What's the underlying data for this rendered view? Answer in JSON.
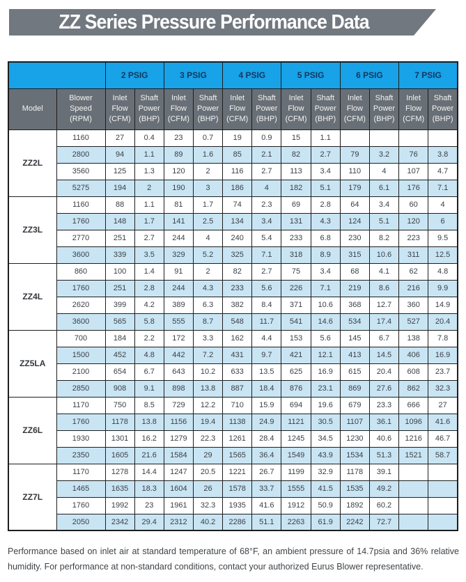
{
  "title": "ZZ Series Pressure Performance Data",
  "footnote": "Performance based on inlet air at standard temperature of 68°F, an ambient pressure of 14.7psia and 36% relative humidity. For performance at non-standard conditions, contact your authorized Eurus Blower representative.",
  "colors": {
    "banner_gray": "#71787f",
    "header_blue": "#18a2e8",
    "header_blue_text": "#11395e",
    "header_gray": "#696f76",
    "row_alt_blue": "#c9e5f4",
    "border": "#1d1d1d"
  },
  "table": {
    "psig_headers": [
      "2 PSIG",
      "3 PSIG",
      "4 PSIG",
      "5 PSIG",
      "6 PSIG",
      "7 PSIG"
    ],
    "model_header": "Model",
    "speed_header": "Blower\nSpeed\n(RPM)",
    "inlet_header": "Inlet\nFlow\n(CFM)",
    "shaft_header": "Shaft\nPower\n(BHP)",
    "groups": [
      {
        "model": "ZZ2L",
        "rows": [
          {
            "rpm": "1160",
            "values": [
              "27",
              "0.4",
              "23",
              "0.7",
              "19",
              "0.9",
              "15",
              "1.1",
              "",
              "",
              "",
              ""
            ]
          },
          {
            "rpm": "2800",
            "values": [
              "94",
              "1.1",
              "89",
              "1.6",
              "85",
              "2.1",
              "82",
              "2.7",
              "79",
              "3.2",
              "76",
              "3.8"
            ]
          },
          {
            "rpm": "3560",
            "values": [
              "125",
              "1.3",
              "120",
              "2",
              "116",
              "2.7",
              "113",
              "3.4",
              "110",
              "4",
              "107",
              "4.7"
            ]
          },
          {
            "rpm": "5275",
            "values": [
              "194",
              "2",
              "190",
              "3",
              "186",
              "4",
              "182",
              "5.1",
              "179",
              "6.1",
              "176",
              "7.1"
            ]
          }
        ]
      },
      {
        "model": "ZZ3L",
        "rows": [
          {
            "rpm": "1160",
            "values": [
              "88",
              "1.1",
              "81",
              "1.7",
              "74",
              "2.3",
              "69",
              "2.8",
              "64",
              "3.4",
              "60",
              "4"
            ]
          },
          {
            "rpm": "1760",
            "values": [
              "148",
              "1.7",
              "141",
              "2.5",
              "134",
              "3.4",
              "131",
              "4.3",
              "124",
              "5.1",
              "120",
              "6"
            ]
          },
          {
            "rpm": "2770",
            "values": [
              "251",
              "2.7",
              "244",
              "4",
              "240",
              "5.4",
              "233",
              "6.8",
              "230",
              "8.2",
              "223",
              "9.5"
            ]
          },
          {
            "rpm": "3600",
            "values": [
              "339",
              "3.5",
              "329",
              "5.2",
              "325",
              "7.1",
              "318",
              "8.9",
              "315",
              "10.6",
              "311",
              "12.5"
            ]
          }
        ]
      },
      {
        "model": "ZZ4L",
        "rows": [
          {
            "rpm": "860",
            "values": [
              "100",
              "1.4",
              "91",
              "2",
              "82",
              "2.7",
              "75",
              "3.4",
              "68",
              "4.1",
              "62",
              "4.8"
            ]
          },
          {
            "rpm": "1760",
            "values": [
              "251",
              "2.8",
              "244",
              "4.3",
              "233",
              "5.6",
              "226",
              "7.1",
              "219",
              "8.6",
              "216",
              "9.9"
            ]
          },
          {
            "rpm": "2620",
            "values": [
              "399",
              "4.2",
              "389",
              "6.3",
              "382",
              "8.4",
              "371",
              "10.6",
              "368",
              "12.7",
              "360",
              "14.9"
            ]
          },
          {
            "rpm": "3600",
            "values": [
              "565",
              "5.8",
              "555",
              "8.7",
              "548",
              "11.7",
              "541",
              "14.6",
              "534",
              "17.4",
              "527",
              "20.4"
            ]
          }
        ]
      },
      {
        "model": "ZZ5LA",
        "rows": [
          {
            "rpm": "700",
            "values": [
              "184",
              "2.2",
              "172",
              "3.3",
              "162",
              "4.4",
              "153",
              "5.6",
              "145",
              "6.7",
              "138",
              "7.8"
            ]
          },
          {
            "rpm": "1500",
            "values": [
              "452",
              "4.8",
              "442",
              "7.2",
              "431",
              "9.7",
              "421",
              "12.1",
              "413",
              "14.5",
              "406",
              "16.9"
            ]
          },
          {
            "rpm": "2100",
            "values": [
              "654",
              "6.7",
              "643",
              "10.2",
              "633",
              "13.5",
              "625",
              "16.9",
              "615",
              "20.4",
              "608",
              "23.7"
            ]
          },
          {
            "rpm": "2850",
            "values": [
              "908",
              "9.1",
              "898",
              "13.8",
              "887",
              "18.4",
              "876",
              "23.1",
              "869",
              "27.6",
              "862",
              "32.3"
            ]
          }
        ]
      },
      {
        "model": "ZZ6L",
        "rows": [
          {
            "rpm": "1170",
            "values": [
              "750",
              "8.5",
              "729",
              "12.2",
              "710",
              "15.9",
              "694",
              "19.6",
              "679",
              "23.3",
              "666",
              "27"
            ]
          },
          {
            "rpm": "1760",
            "values": [
              "1178",
              "13.8",
              "1156",
              "19.4",
              "1138",
              "24.9",
              "1121",
              "30.5",
              "1107",
              "36.1",
              "1096",
              "41.6"
            ]
          },
          {
            "rpm": "1930",
            "values": [
              "1301",
              "16.2",
              "1279",
              "22.3",
              "1261",
              "28.4",
              "1245",
              "34.5",
              "1230",
              "40.6",
              "1216",
              "46.7"
            ]
          },
          {
            "rpm": "2350",
            "values": [
              "1605",
              "21.6",
              "1584",
              "29",
              "1565",
              "36.4",
              "1549",
              "43.9",
              "1534",
              "51.3",
              "1521",
              "58.7"
            ]
          }
        ]
      },
      {
        "model": "ZZ7L",
        "rows": [
          {
            "rpm": "1170",
            "values": [
              "1278",
              "14.4",
              "1247",
              "20.5",
              "1221",
              "26.7",
              "1199",
              "32.9",
              "1178",
              "39.1",
              "",
              ""
            ]
          },
          {
            "rpm": "1465",
            "values": [
              "1635",
              "18.3",
              "1604",
              "26",
              "1578",
              "33.7",
              "1555",
              "41.5",
              "1535",
              "49.2",
              "",
              ""
            ]
          },
          {
            "rpm": "1760",
            "values": [
              "1992",
              "23",
              "1961",
              "32.3",
              "1935",
              "41.6",
              "1912",
              "50.9",
              "1892",
              "60.2",
              "",
              ""
            ]
          },
          {
            "rpm": "2050",
            "values": [
              "2342",
              "29.4",
              "2312",
              "40.2",
              "2286",
              "51.1",
              "2263",
              "61.9",
              "2242",
              "72.7",
              "",
              ""
            ]
          }
        ]
      }
    ]
  }
}
